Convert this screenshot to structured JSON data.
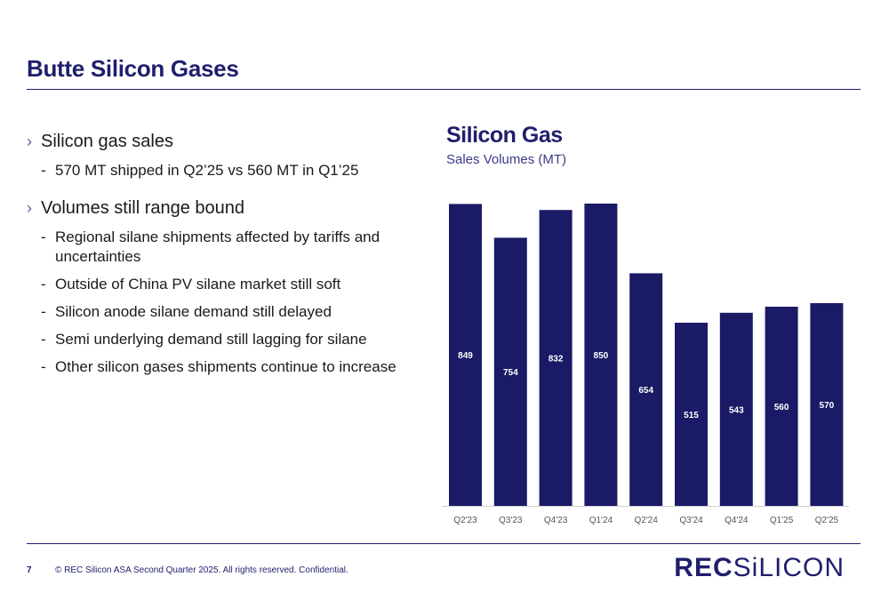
{
  "page": {
    "title": "Butte Silicon Gases",
    "slide_number": "7",
    "copyright": "©  REC Silicon ASA Second Quarter 2025. All rights reserved. Confidential.",
    "logo_part1": "REC",
    "logo_part2": "SiLICON"
  },
  "bullets": [
    {
      "text": "Silicon gas sales",
      "sub": [
        "570 MT shipped in Q2’25 vs 560 MT in Q1’25"
      ]
    },
    {
      "text": "Volumes still range bound",
      "sub": [
        "Regional silane shipments affected by tariffs and uncertainties",
        "Outside of China PV silane market still soft",
        "Silicon anode silane demand still delayed",
        "Semi underlying demand still lagging for silane",
        "Other silicon gases shipments continue to increase"
      ]
    }
  ],
  "chart_data": {
    "type": "bar",
    "title": "Silicon Gas",
    "subtitle": "Sales Volumes (MT)",
    "categories": [
      "Q2'23",
      "Q3'23",
      "Q4'23",
      "Q1'24",
      "Q2'24",
      "Q3'24",
      "Q4'24",
      "Q1'25",
      "Q2'25"
    ],
    "values": [
      849,
      754,
      832,
      850,
      654,
      515,
      543,
      560,
      570
    ],
    "ylim": [
      0,
      850
    ],
    "bar_color": "#1a1a66",
    "label_color": "#ffffff",
    "grid": false,
    "legend": "none"
  }
}
